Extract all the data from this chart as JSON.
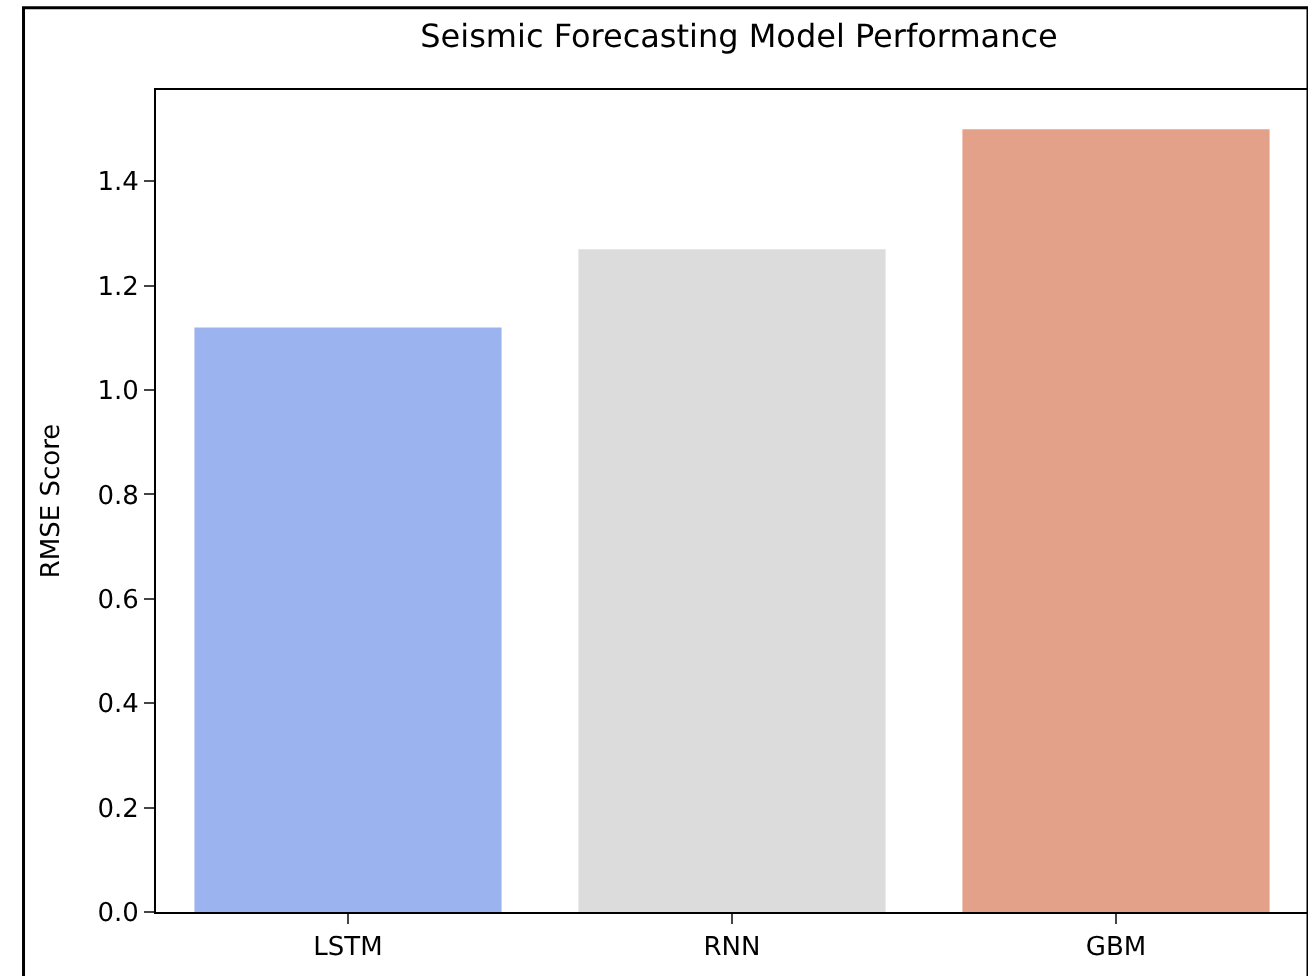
{
  "chart_data": {
    "type": "bar",
    "title": "Seismic Forecasting Model Performance",
    "ylabel": "RMSE Score",
    "categories": [
      "LSTM",
      "RNN",
      "GBM"
    ],
    "values": [
      1.12,
      1.27,
      1.5
    ],
    "colors": [
      "#9bb4ef",
      "#dcdcdc",
      "#e4a189"
    ],
    "ylim": [
      0,
      1.575
    ],
    "yticks": [
      {
        "value": 0,
        "label": "0.0"
      },
      {
        "value": 0.2,
        "label": "0.2"
      },
      {
        "value": 0.4,
        "label": "0.4"
      },
      {
        "value": 0.6,
        "label": "0.6"
      },
      {
        "value": 0.8,
        "label": "0.8"
      },
      {
        "value": 1.0,
        "label": "1.0"
      },
      {
        "value": 1.2,
        "label": "1.2"
      },
      {
        "value": 1.4,
        "label": "1.4"
      }
    ]
  }
}
